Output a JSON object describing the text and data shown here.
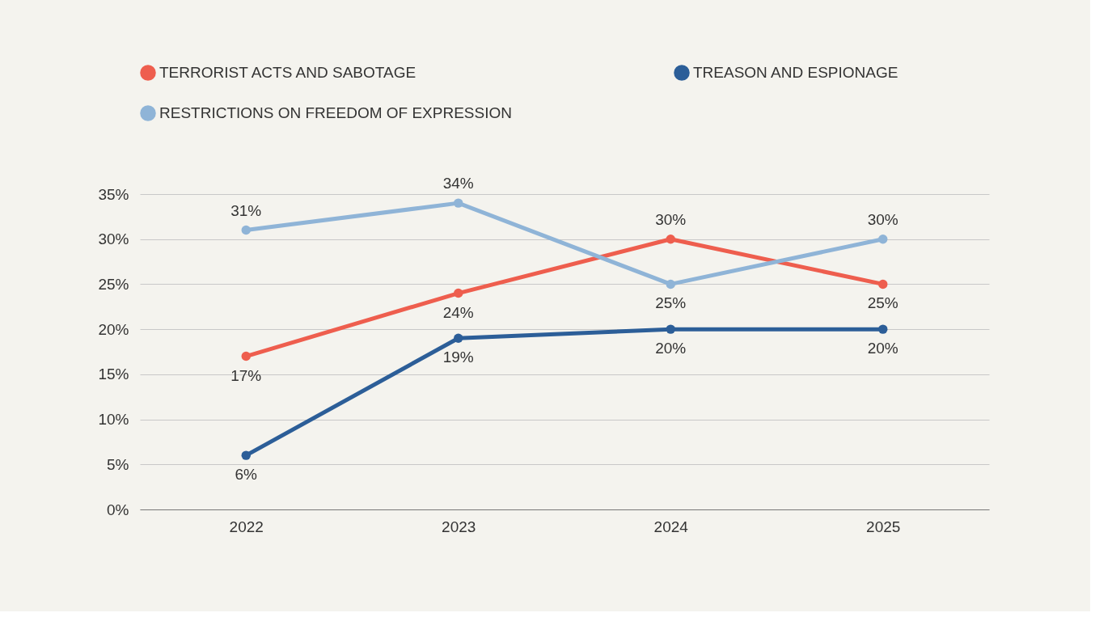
{
  "chart_data": {
    "type": "line",
    "categories": [
      "2022",
      "2023",
      "2024",
      "2025"
    ],
    "series": [
      {
        "name": "TERRORIST ACTS AND SABOTAGE",
        "color": "#ee5e4e",
        "values": [
          17,
          24,
          30,
          25
        ],
        "value_labels": [
          "17%",
          "24%",
          "30%",
          "25%"
        ]
      },
      {
        "name": "TREASON AND ESPIONAGE",
        "color": "#2c5e98",
        "values": [
          6,
          19,
          20,
          20
        ],
        "value_labels": [
          "6%",
          "19%",
          "20%",
          "20%"
        ]
      },
      {
        "name": "RESTRICTIONS ON FREEDOM OF EXPRESSION",
        "color": "#8fb4d7",
        "values": [
          31,
          34,
          25,
          30
        ],
        "value_labels": [
          "31%",
          "34%",
          "25%",
          "30%"
        ]
      }
    ],
    "ylim": [
      0,
      35
    ],
    "yticks": [
      {
        "value": 0,
        "label": "0%"
      },
      {
        "value": 5,
        "label": "5%"
      },
      {
        "value": 10,
        "label": "10%"
      },
      {
        "value": 15,
        "label": "15%"
      },
      {
        "value": 20,
        "label": "20%"
      },
      {
        "value": 25,
        "label": "25%"
      },
      {
        "value": 30,
        "label": "30%"
      },
      {
        "value": 35,
        "label": "35%"
      }
    ],
    "grid": "y",
    "legend": "top left",
    "marker": "circle",
    "line_style": "solid"
  }
}
